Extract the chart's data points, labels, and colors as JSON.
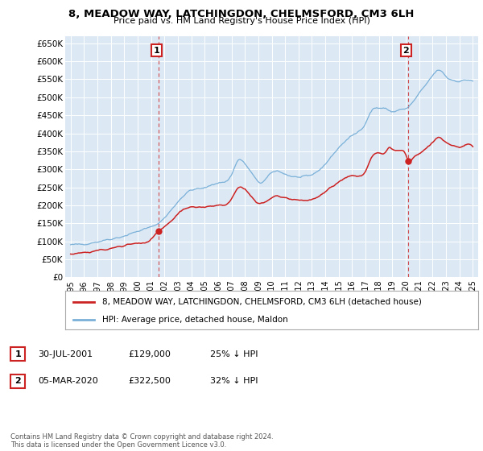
{
  "title": "8, MEADOW WAY, LATCHINGDON, CHELMSFORD, CM3 6LH",
  "subtitle": "Price paid vs. HM Land Registry's House Price Index (HPI)",
  "ytick_values": [
    0,
    50000,
    100000,
    150000,
    200000,
    250000,
    300000,
    350000,
    400000,
    450000,
    500000,
    550000,
    600000,
    650000
  ],
  "ylabel_ticks": [
    "£0",
    "£50K",
    "£100K",
    "£150K",
    "£200K",
    "£250K",
    "£300K",
    "£350K",
    "£400K",
    "£450K",
    "£500K",
    "£550K",
    "£600K",
    "£650K"
  ],
  "background_color": "#ffffff",
  "plot_bg_color": "#dce9f5",
  "grid_color": "#ffffff",
  "hpi_color": "#7ab0d8",
  "price_color": "#cc2222",
  "marker1_x": 2001.58,
  "marker1_price": 129000,
  "marker1_label": "1",
  "marker2_x": 2020.17,
  "marker2_price": 322500,
  "marker2_label": "2",
  "legend_red_label": "8, MEADOW WAY, LATCHINGDON, CHELMSFORD, CM3 6LH (detached house)",
  "legend_blue_label": "HPI: Average price, detached house, Maldon",
  "annotation1": [
    "1",
    "30-JUL-2001",
    "£129,000",
    "25% ↓ HPI"
  ],
  "annotation2": [
    "2",
    "05-MAR-2020",
    "£322,500",
    "32% ↓ HPI"
  ],
  "footer": "Contains HM Land Registry data © Crown copyright and database right 2024.\nThis data is licensed under the Open Government Licence v3.0."
}
